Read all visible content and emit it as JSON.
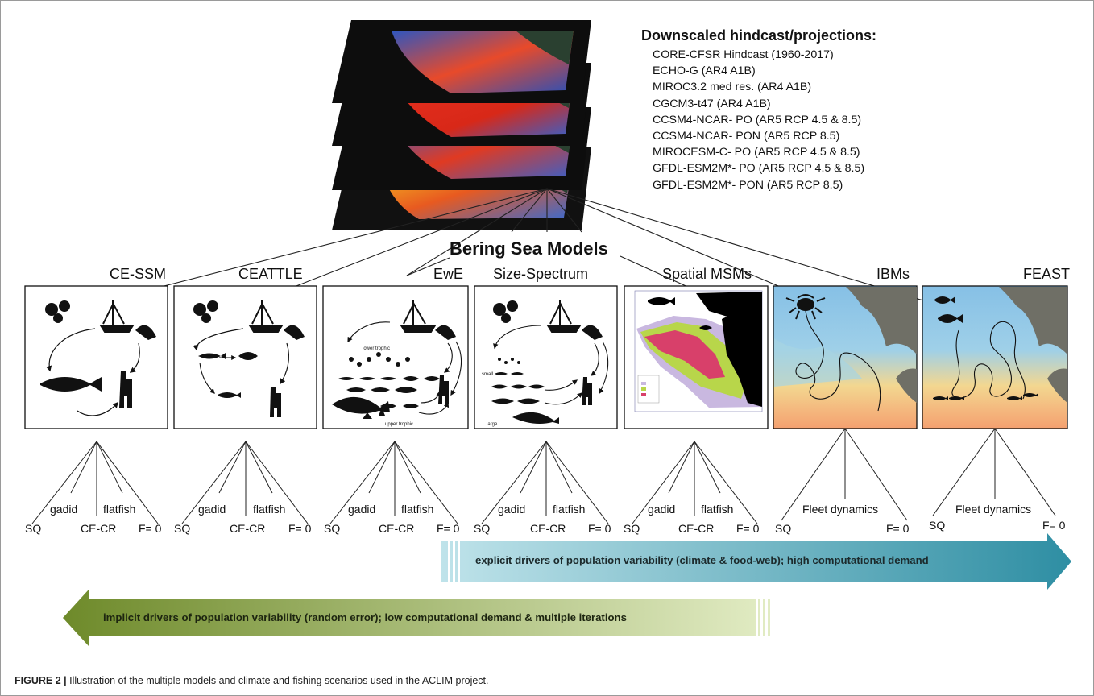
{
  "downscaled": {
    "title": "Downscaled hindcast/projections:",
    "items": [
      "CORE-CFSR Hindcast (1960-2017)",
      "ECHO-G (AR4 A1B)",
      "MIROC3.2 med res. (AR4 A1B)",
      "CGCM3-t47 (AR4 A1B)",
      "CCSM4-NCAR- PO (AR5 RCP 4.5 & 8.5)",
      "CCSM4-NCAR- PON (AR5 RCP 8.5)",
      "MIROCESM-C- PO (AR5 RCP 4.5 & 8.5)",
      "GFDL-ESM2M*- PO (AR5 RCP 4.5 & 8.5)",
      "GFDL-ESM2M*- PON (AR5 RCP 8.5)"
    ]
  },
  "center_title": "Bering Sea Models",
  "models": [
    {
      "name": "CE-SSM",
      "scenarios": [
        "SQ",
        "gadid",
        "CE-CR",
        "flatfish",
        "F= 0"
      ]
    },
    {
      "name": "CEATTLE",
      "scenarios": [
        "SQ",
        "gadid",
        "CE-CR",
        "flatfish",
        "F= 0"
      ]
    },
    {
      "name": "EwE",
      "scenarios": [
        "SQ",
        "gadid",
        "CE-CR",
        "flatfish",
        "F= 0"
      ],
      "labels": {
        "lower": "lower trophic",
        "upper": "upper trophic"
      }
    },
    {
      "name": "Size-Spectrum",
      "scenarios": [
        "SQ",
        "gadid",
        "CE-CR",
        "flatfish",
        "F= 0"
      ],
      "labels": {
        "small": "small",
        "large": "large"
      }
    },
    {
      "name": "Spatial MSMs",
      "scenarios": [
        "SQ",
        "gadid",
        "CE-CR",
        "flatfish",
        "F= 0"
      ]
    },
    {
      "name": "IBMs",
      "scenarios": [
        "SQ",
        "Fleet dynamics",
        "F= 0"
      ]
    },
    {
      "name": "FEAST",
      "scenarios": [
        "SQ",
        "Fleet dynamics",
        "F= 0"
      ]
    }
  ],
  "arrows": {
    "explicit": "explicit drivers of population variability (climate & food-web); high computational demand",
    "implicit": "implicit drivers of population variability (random error); low computational demand & multiple iterations"
  },
  "caption": {
    "label": "FIGURE 2 |",
    "text": " Illustration of the multiple models and climate and fishing scenarios used in the ACLIM project."
  },
  "colors": {
    "explicit_arrow_start": "#bfe3ea",
    "explicit_arrow_end": "#2e8ea3",
    "implicit_arrow_start": "#6e8a2a",
    "implicit_arrow_end": "#d9e6b6",
    "map_red": "#e03020",
    "map_blue": "#3a60c8",
    "map_yellow": "#f0e040",
    "msm_pink": "#d8406a",
    "msm_green": "#b8d64a",
    "msm_lavender": "#c9b8e0"
  }
}
